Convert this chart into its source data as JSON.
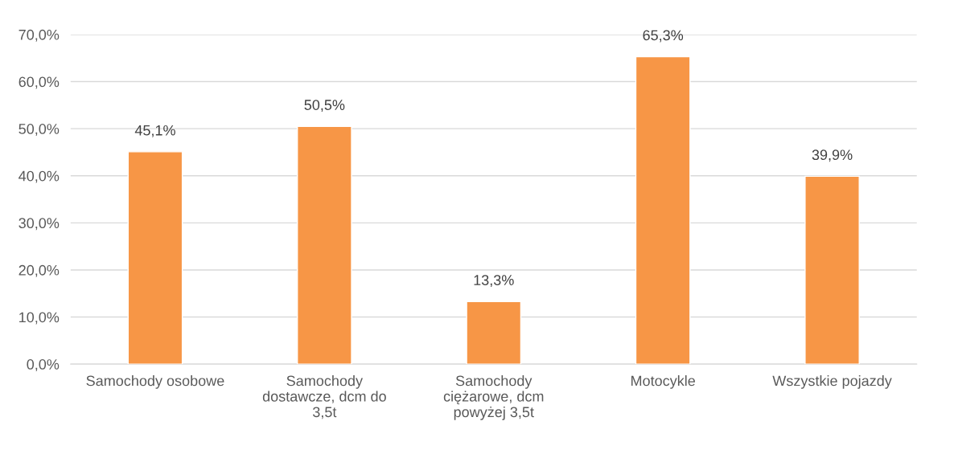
{
  "chart_data": {
    "type": "bar",
    "categories": [
      "Samochody osobowe",
      "Samochody dostawcze, dcm do 3,5t",
      "Samochody ciężarowe, dcm powyżej 3,5t",
      "Motocykle",
      "Wszystkie pojazdy"
    ],
    "values": [
      45.1,
      50.5,
      13.3,
      65.3,
      39.9
    ],
    "value_labels": [
      "45,1%",
      "50,5%",
      "13,3%",
      "65,3%",
      "39,9%"
    ],
    "color": "#f79646",
    "ylim": [
      0,
      70
    ],
    "yticks": [
      {
        "value": 0,
        "label": "0,0%"
      },
      {
        "value": 10,
        "label": "10,0%"
      },
      {
        "value": 20,
        "label": "20,0%"
      },
      {
        "value": 30,
        "label": "30,0%"
      },
      {
        "value": 40,
        "label": "40,0%"
      },
      {
        "value": 50,
        "label": "50,0%"
      },
      {
        "value": 60,
        "label": "60,0%"
      },
      {
        "value": 70,
        "label": "70,0%"
      }
    ],
    "grid": "y",
    "legend": false
  }
}
